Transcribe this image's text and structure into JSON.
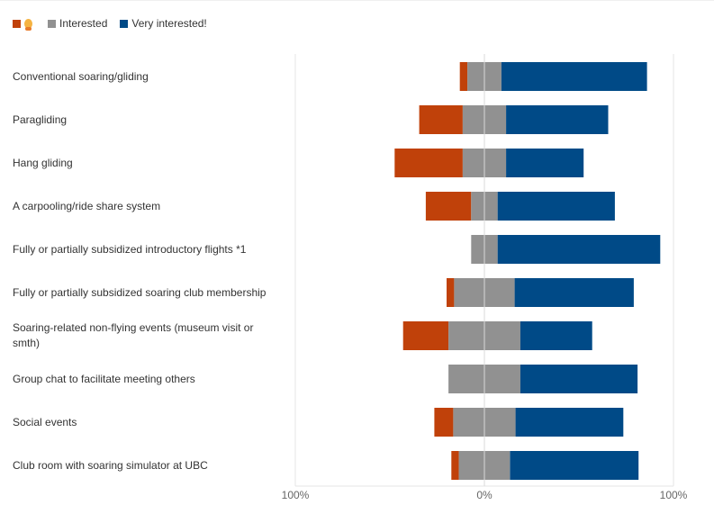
{
  "legend": {
    "items": [
      {
        "label": "",
        "color": "#c0410a",
        "icon": "person-emoji-icon"
      },
      {
        "label": "Interested",
        "color": "#919191"
      },
      {
        "label": "Very interested!",
        "color": "#004a87"
      }
    ]
  },
  "chart_data": {
    "type": "bar",
    "orientation": "horizontal",
    "stacked": "diverging",
    "categories": [
      "Conventional soaring/gliding",
      "Paragliding",
      "Hang gliding",
      "A carpooling/ride share system",
      "Fully or partially subsidized introductory flights *1",
      "Fully or partially subsidized soaring club membership",
      "Soaring-related non-flying events (museum visit or smth)",
      "Group chat to facilitate meeting others",
      "Social events",
      "Club room with soaring simulator at UBC"
    ],
    "series": [
      {
        "color": "#c0410a",
        "values": [
          4,
          23,
          36,
          24,
          0,
          4,
          24,
          0,
          10,
          4
        ]
      },
      {
        "name": "Interested",
        "color": "#919191",
        "values": [
          18,
          23,
          23,
          14,
          14,
          32,
          38,
          38,
          33,
          27
        ]
      },
      {
        "name": "Very interested!",
        "color": "#004a87",
        "values": [
          77,
          54,
          41,
          62,
          86,
          63,
          38,
          62,
          57,
          68
        ]
      }
    ],
    "xlim": [
      -100,
      100
    ],
    "xticks": [
      "100%",
      "0%",
      "100%"
    ],
    "grid": false,
    "legend_position": "top-left"
  }
}
